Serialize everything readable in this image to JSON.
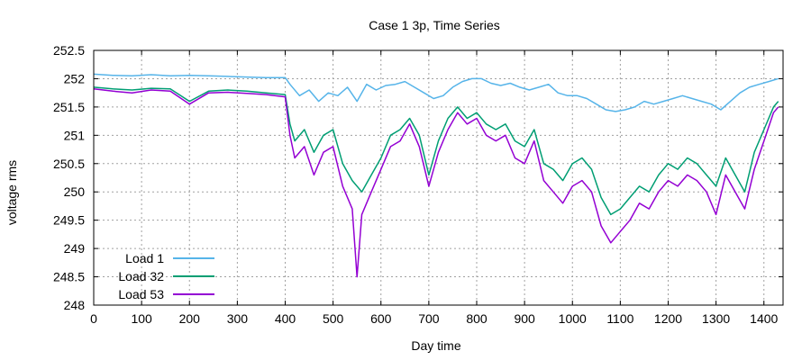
{
  "chart_data": {
    "type": "line",
    "title": "Case 1 3p, Time Series",
    "xlabel": "Day time",
    "ylabel": "voltage rms",
    "xlim": [
      0,
      1440
    ],
    "ylim": [
      248,
      252.5
    ],
    "xticks": [
      0,
      100,
      200,
      300,
      400,
      500,
      600,
      700,
      800,
      900,
      1000,
      1100,
      1200,
      1300,
      1400
    ],
    "yticks": [
      248,
      248.5,
      249,
      249.5,
      250,
      250.5,
      251,
      251.5,
      252,
      252.5
    ],
    "ytick_labels": [
      "248",
      "248.5",
      "249",
      "249.5",
      "250",
      "250.5",
      "251",
      "251.5",
      "252",
      "252.5"
    ],
    "grid": true,
    "legend_position": "bottom-left",
    "series": [
      {
        "name": "Load 1",
        "color": "#56b4e9",
        "x": [
          0,
          40,
          80,
          120,
          160,
          200,
          240,
          280,
          320,
          360,
          400,
          410,
          430,
          450,
          470,
          490,
          510,
          530,
          550,
          570,
          590,
          610,
          630,
          650,
          670,
          690,
          710,
          730,
          750,
          770,
          790,
          810,
          830,
          850,
          870,
          890,
          910,
          930,
          950,
          970,
          990,
          1010,
          1030,
          1050,
          1070,
          1090,
          1110,
          1130,
          1150,
          1170,
          1190,
          1210,
          1230,
          1250,
          1270,
          1290,
          1310,
          1330,
          1350,
          1370,
          1390,
          1410,
          1430
        ],
        "y": [
          252.08,
          252.06,
          252.05,
          252.07,
          252.05,
          252.06,
          252.05,
          252.04,
          252.03,
          252.02,
          252.02,
          251.9,
          251.7,
          251.8,
          251.6,
          251.75,
          251.7,
          251.85,
          251.6,
          251.9,
          251.8,
          251.88,
          251.9,
          251.95,
          251.85,
          251.75,
          251.65,
          251.7,
          251.85,
          251.95,
          252.0,
          252.0,
          251.92,
          251.88,
          251.92,
          251.85,
          251.8,
          251.85,
          251.9,
          251.75,
          251.7,
          251.7,
          251.65,
          251.55,
          251.45,
          251.42,
          251.45,
          251.5,
          251.6,
          251.55,
          251.6,
          251.65,
          251.7,
          251.65,
          251.6,
          251.55,
          251.45,
          251.6,
          251.75,
          251.85,
          251.9,
          251.95,
          252.0
        ]
      },
      {
        "name": "Load 32",
        "color": "#009e73",
        "x": [
          0,
          40,
          80,
          120,
          160,
          200,
          240,
          280,
          320,
          360,
          400,
          410,
          420,
          440,
          460,
          480,
          500,
          520,
          540,
          560,
          580,
          600,
          620,
          640,
          660,
          680,
          700,
          720,
          740,
          760,
          780,
          800,
          820,
          840,
          860,
          880,
          900,
          920,
          940,
          960,
          980,
          1000,
          1020,
          1040,
          1060,
          1080,
          1100,
          1120,
          1140,
          1160,
          1180,
          1200,
          1220,
          1240,
          1260,
          1280,
          1300,
          1320,
          1340,
          1360,
          1380,
          1400,
          1420,
          1430
        ],
        "y": [
          251.85,
          251.82,
          251.8,
          251.83,
          251.82,
          251.6,
          251.78,
          251.8,
          251.78,
          251.75,
          251.72,
          251.2,
          250.9,
          251.1,
          250.7,
          251.0,
          251.1,
          250.5,
          250.2,
          250.0,
          250.3,
          250.6,
          251.0,
          251.1,
          251.3,
          251.0,
          250.3,
          250.9,
          251.3,
          251.5,
          251.3,
          251.4,
          251.2,
          251.1,
          251.2,
          250.9,
          250.8,
          251.1,
          250.5,
          250.4,
          250.2,
          250.5,
          250.6,
          250.4,
          249.9,
          249.6,
          249.7,
          249.9,
          250.1,
          250.0,
          250.3,
          250.5,
          250.4,
          250.6,
          250.5,
          250.3,
          250.1,
          250.6,
          250.3,
          250.0,
          250.7,
          251.1,
          251.5,
          251.6
        ]
      },
      {
        "name": "Load 53",
        "color": "#9400d3",
        "x": [
          0,
          40,
          80,
          120,
          160,
          200,
          240,
          280,
          320,
          360,
          400,
          410,
          420,
          440,
          460,
          480,
          500,
          520,
          540,
          550,
          560,
          580,
          600,
          620,
          640,
          660,
          680,
          700,
          720,
          740,
          760,
          780,
          800,
          820,
          840,
          860,
          880,
          900,
          920,
          940,
          960,
          980,
          1000,
          1020,
          1040,
          1060,
          1080,
          1100,
          1120,
          1140,
          1160,
          1180,
          1200,
          1220,
          1240,
          1260,
          1280,
          1300,
          1320,
          1340,
          1360,
          1380,
          1400,
          1420,
          1430
        ],
        "y": [
          251.82,
          251.78,
          251.75,
          251.8,
          251.78,
          251.55,
          251.75,
          251.76,
          251.74,
          251.72,
          251.68,
          251.0,
          250.6,
          250.8,
          250.3,
          250.7,
          250.8,
          250.1,
          249.7,
          248.5,
          249.6,
          250.0,
          250.4,
          250.8,
          250.9,
          251.2,
          250.8,
          250.1,
          250.7,
          251.1,
          251.4,
          251.2,
          251.3,
          251.0,
          250.9,
          251.0,
          250.6,
          250.5,
          250.9,
          250.2,
          250.0,
          249.8,
          250.1,
          250.2,
          250.0,
          249.4,
          249.1,
          249.3,
          249.5,
          249.8,
          249.7,
          250.0,
          250.2,
          250.1,
          250.3,
          250.2,
          250.0,
          249.6,
          250.3,
          250.0,
          249.7,
          250.4,
          250.9,
          251.4,
          251.5
        ]
      }
    ]
  }
}
